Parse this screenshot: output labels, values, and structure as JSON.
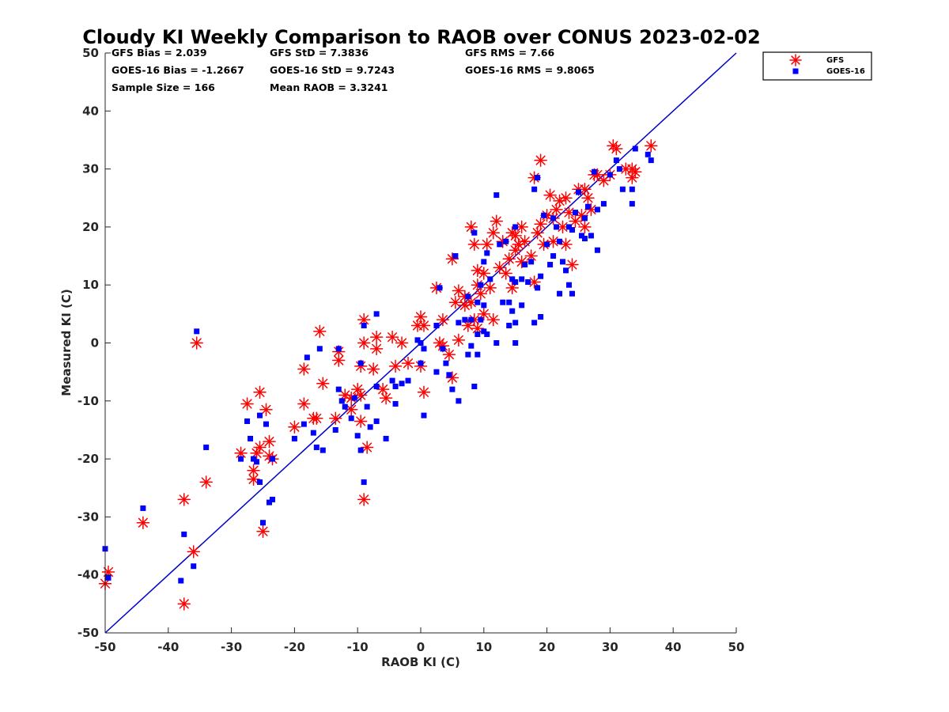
{
  "chart_data": {
    "type": "scatter",
    "title": "Cloudy KI Weekly Comparison to RAOB over CONUS 2023-02-02",
    "xlabel": "RAOB KI (C)",
    "ylabel": "Measured KI (C)",
    "xlim": [
      -50,
      50
    ],
    "ylim": [
      -50,
      50
    ],
    "xticks": [
      "-50",
      "-40",
      "-30",
      "-20",
      "-10",
      "0",
      "10",
      "20",
      "30",
      "40",
      "50"
    ],
    "yticks": [
      "50",
      "40",
      "30",
      "20",
      "10",
      "0",
      "-10",
      "-20",
      "-30",
      "-40",
      "-50"
    ],
    "grid": false,
    "legend_position": "outside-top-right",
    "reference_line": {
      "type": "one-to-one",
      "color": "#0000cc"
    },
    "stats": {
      "gfs_bias": "GFS Bias = 2.039",
      "gfs_std": "GFS StD = 7.3836",
      "gfs_rms": "GFS RMS = 7.66",
      "goes_bias": "GOES-16 Bias = -1.2667",
      "goes_std": "GOES-16 StD = 9.7243",
      "goes_rms": "GOES-16 RMS = 9.8065",
      "sample_size": "Sample Size = 166",
      "mean_raob": "Mean RAOB = 3.3241"
    },
    "series": [
      {
        "name": "GFS",
        "marker": "asterisk",
        "color": "#ff0000",
        "points": [
          [
            -50,
            -41.5
          ],
          [
            -49.5,
            -39.5
          ],
          [
            -44,
            -31
          ],
          [
            -37.5,
            -45
          ],
          [
            -37.5,
            -27
          ],
          [
            -35.5,
            0
          ],
          [
            -36,
            -36
          ],
          [
            -34,
            -24
          ],
          [
            -28.5,
            -19
          ],
          [
            -27.5,
            -10.5
          ],
          [
            -26.5,
            -22
          ],
          [
            -26.5,
            -23.5
          ],
          [
            -26,
            -19
          ],
          [
            -25.5,
            -18
          ],
          [
            -25.5,
            -8.5
          ],
          [
            -25,
            -32.5
          ],
          [
            -24.5,
            -11.5
          ],
          [
            -24,
            -19.5
          ],
          [
            -24,
            -17
          ],
          [
            -23.5,
            -20
          ],
          [
            -20,
            -14.5
          ],
          [
            -18.5,
            -10.5
          ],
          [
            -18.5,
            -4.5
          ],
          [
            -17,
            -13
          ],
          [
            -16.5,
            -13
          ],
          [
            -16,
            2
          ],
          [
            -15.5,
            -7
          ],
          [
            -13.5,
            -13
          ],
          [
            -13,
            -1.5
          ],
          [
            -13,
            -3
          ],
          [
            -12,
            -9
          ],
          [
            -11,
            -9.5
          ],
          [
            -11,
            -11.5
          ],
          [
            -10,
            -8
          ],
          [
            -9.5,
            -13.5
          ],
          [
            -9.5,
            -4
          ],
          [
            -9.5,
            -9
          ],
          [
            -9,
            4
          ],
          [
            -9,
            0
          ],
          [
            -9,
            -27
          ],
          [
            -8.5,
            -18
          ],
          [
            -7.5,
            -4.5
          ],
          [
            -7,
            1
          ],
          [
            -7,
            -1
          ],
          [
            -6,
            -8
          ],
          [
            -5.5,
            -9.5
          ],
          [
            -4.5,
            1
          ],
          [
            -4,
            -4
          ],
          [
            -3,
            0
          ],
          [
            -2,
            -3.5
          ],
          [
            -0.5,
            3
          ],
          [
            0,
            4.5
          ],
          [
            0,
            -4
          ],
          [
            0.5,
            -8.5
          ],
          [
            0.5,
            3
          ],
          [
            2.5,
            9.5
          ],
          [
            3,
            0
          ],
          [
            3.5,
            -0.5
          ],
          [
            3.5,
            4
          ],
          [
            4.5,
            -2
          ],
          [
            5,
            -6
          ],
          [
            5,
            14.5
          ],
          [
            5.5,
            7
          ],
          [
            6,
            9
          ],
          [
            6,
            0.5
          ],
          [
            7,
            8
          ],
          [
            7,
            6.5
          ],
          [
            7.5,
            3
          ],
          [
            8,
            7
          ],
          [
            8,
            20
          ],
          [
            8.5,
            4
          ],
          [
            8.5,
            17
          ],
          [
            9,
            2.5
          ],
          [
            9,
            12.5
          ],
          [
            9,
            10
          ],
          [
            9.5,
            8.5
          ],
          [
            10,
            12
          ],
          [
            10,
            5
          ],
          [
            10.5,
            17
          ],
          [
            11,
            9.5
          ],
          [
            11.5,
            4
          ],
          [
            11.5,
            19
          ],
          [
            12,
            21
          ],
          [
            12.5,
            13
          ],
          [
            13,
            17.5
          ],
          [
            13.5,
            12
          ],
          [
            14,
            14.5
          ],
          [
            14.5,
            19
          ],
          [
            14.5,
            9.5
          ],
          [
            15,
            16
          ],
          [
            15,
            18.5
          ],
          [
            15.5,
            17
          ],
          [
            16,
            14
          ],
          [
            16,
            20
          ],
          [
            16.5,
            17.5
          ],
          [
            17.5,
            15
          ],
          [
            18,
            28.5
          ],
          [
            18,
            10.5
          ],
          [
            18.5,
            19
          ],
          [
            19,
            31.5
          ],
          [
            19,
            20.5
          ],
          [
            19.5,
            17
          ],
          [
            20,
            22
          ],
          [
            20.5,
            25.5
          ],
          [
            21,
            17.5
          ],
          [
            21,
            21.5
          ],
          [
            21.5,
            23
          ],
          [
            22,
            24.5
          ],
          [
            22.5,
            20
          ],
          [
            23,
            25
          ],
          [
            23,
            17
          ],
          [
            23.5,
            22.5
          ],
          [
            24,
            13.5
          ],
          [
            24.5,
            21
          ],
          [
            25,
            26.5
          ],
          [
            25.5,
            22
          ],
          [
            26,
            26.5
          ],
          [
            26,
            20
          ],
          [
            26.5,
            25
          ],
          [
            27,
            23
          ],
          [
            27.5,
            29
          ],
          [
            28,
            29
          ],
          [
            29,
            28
          ],
          [
            30,
            29
          ],
          [
            30.5,
            34
          ],
          [
            31,
            33.5
          ],
          [
            32.5,
            30
          ],
          [
            33.5,
            28.5
          ],
          [
            33.5,
            30
          ],
          [
            34,
            29.5
          ],
          [
            36.5,
            34
          ]
        ]
      },
      {
        "name": "GOES-16",
        "marker": "square",
        "color": "#0000ff",
        "points": [
          [
            -50,
            -35.5
          ],
          [
            -49.5,
            -40.5
          ],
          [
            -44,
            -28.5
          ],
          [
            -38,
            -41
          ],
          [
            -37.5,
            -33
          ],
          [
            -36,
            -38.5
          ],
          [
            -35.5,
            2
          ],
          [
            -34,
            -18
          ],
          [
            -28.5,
            -20
          ],
          [
            -27.5,
            -13.5
          ],
          [
            -27,
            -16.5
          ],
          [
            -26.5,
            -20
          ],
          [
            -26,
            -20.5
          ],
          [
            -25.5,
            -24
          ],
          [
            -25.5,
            -12.5
          ],
          [
            -25,
            -31
          ],
          [
            -24.5,
            -14
          ],
          [
            -24,
            -27.5
          ],
          [
            -23.5,
            -27
          ],
          [
            -23.5,
            -20
          ],
          [
            -20,
            -16.5
          ],
          [
            -18.5,
            -14
          ],
          [
            -18,
            -2.5
          ],
          [
            -17,
            -15.5
          ],
          [
            -16.5,
            -18
          ],
          [
            -16,
            -1
          ],
          [
            -15.5,
            -18.5
          ],
          [
            -13.5,
            -15
          ],
          [
            -13,
            -1
          ],
          [
            -13,
            -8
          ],
          [
            -12.5,
            -10
          ],
          [
            -12,
            -11
          ],
          [
            -11,
            -13
          ],
          [
            -10.5,
            -9.5
          ],
          [
            -10,
            -16
          ],
          [
            -9.5,
            -3.5
          ],
          [
            -9.5,
            -18.5
          ],
          [
            -9,
            -24
          ],
          [
            -9,
            3
          ],
          [
            -8.5,
            -11
          ],
          [
            -8,
            -14.5
          ],
          [
            -7,
            5
          ],
          [
            -7,
            -7.5
          ],
          [
            -7,
            -13.5
          ],
          [
            -5.5,
            -16.5
          ],
          [
            -4.5,
            -6.5
          ],
          [
            -4,
            -7.5
          ],
          [
            -4,
            -10.5
          ],
          [
            -3,
            -7
          ],
          [
            -2,
            -6.5
          ],
          [
            -0.5,
            0.5
          ],
          [
            0,
            -3.5
          ],
          [
            0,
            0
          ],
          [
            0.5,
            -1
          ],
          [
            0.5,
            -12.5
          ],
          [
            2.5,
            -5
          ],
          [
            2.5,
            3
          ],
          [
            3,
            9.5
          ],
          [
            3.5,
            -1
          ],
          [
            4,
            -3.5
          ],
          [
            4.5,
            -5.5
          ],
          [
            5,
            -8
          ],
          [
            5.5,
            15
          ],
          [
            6,
            3.5
          ],
          [
            6,
            -10
          ],
          [
            7,
            4
          ],
          [
            7.5,
            -2
          ],
          [
            7.5,
            8
          ],
          [
            8,
            -0.5
          ],
          [
            8,
            4
          ],
          [
            8.5,
            19
          ],
          [
            8.5,
            -7.5
          ],
          [
            9,
            1.5
          ],
          [
            9,
            -2
          ],
          [
            9,
            7
          ],
          [
            9.5,
            10
          ],
          [
            9.5,
            4
          ],
          [
            10,
            2
          ],
          [
            10,
            6.5
          ],
          [
            10,
            14
          ],
          [
            10.5,
            1.5
          ],
          [
            10.5,
            15.5
          ],
          [
            11,
            11
          ],
          [
            12,
            0
          ],
          [
            12,
            25.5
          ],
          [
            12.5,
            17
          ],
          [
            13,
            7
          ],
          [
            13.5,
            17.5
          ],
          [
            14,
            7
          ],
          [
            14,
            3
          ],
          [
            14.5,
            11
          ],
          [
            14.5,
            5.5
          ],
          [
            15,
            0
          ],
          [
            15,
            10.5
          ],
          [
            15,
            3.5
          ],
          [
            15,
            20
          ],
          [
            16,
            6.5
          ],
          [
            16,
            11
          ],
          [
            16.5,
            13.5
          ],
          [
            17,
            10.5
          ],
          [
            17.5,
            14
          ],
          [
            18,
            3.5
          ],
          [
            18,
            26.5
          ],
          [
            18.5,
            28.5
          ],
          [
            18.5,
            9.5
          ],
          [
            19,
            4.5
          ],
          [
            19,
            11.5
          ],
          [
            19.5,
            22
          ],
          [
            20,
            17
          ],
          [
            20.5,
            13.5
          ],
          [
            21,
            21.5
          ],
          [
            21,
            15
          ],
          [
            21.5,
            20
          ],
          [
            22,
            8.5
          ],
          [
            22,
            17.5
          ],
          [
            22.5,
            14
          ],
          [
            23,
            12.5
          ],
          [
            23.5,
            10
          ],
          [
            23.5,
            20
          ],
          [
            24,
            19.5
          ],
          [
            24,
            8.5
          ],
          [
            24.5,
            22.5
          ],
          [
            25,
            26
          ],
          [
            25.5,
            18.5
          ],
          [
            26,
            21.5
          ],
          [
            26,
            18
          ],
          [
            26.5,
            23.5
          ],
          [
            27,
            18.5
          ],
          [
            27.5,
            29.5
          ],
          [
            28,
            16
          ],
          [
            28,
            23
          ],
          [
            29,
            24
          ],
          [
            30,
            29
          ],
          [
            31,
            31.5
          ],
          [
            31.5,
            30
          ],
          [
            32,
            26.5
          ],
          [
            33.5,
            26.5
          ],
          [
            33.5,
            24
          ],
          [
            34,
            33.5
          ],
          [
            36.5,
            31.5
          ],
          [
            36,
            32.5
          ]
        ]
      }
    ]
  }
}
